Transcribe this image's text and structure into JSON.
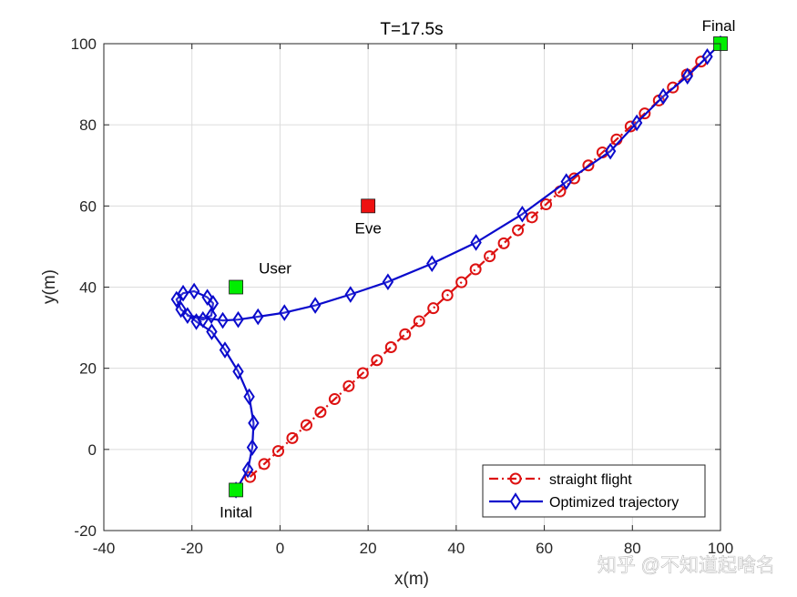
{
  "chart_data": {
    "type": "line",
    "title": "T=17.5s",
    "xlabel": "x(m)",
    "ylabel": "y(m)",
    "xlim": [
      -40,
      100
    ],
    "ylim": [
      -20,
      100
    ],
    "xticks": [
      -40,
      -20,
      0,
      20,
      40,
      60,
      80,
      100
    ],
    "yticks": [
      -20,
      0,
      20,
      40,
      60,
      80,
      100
    ],
    "grid": true,
    "legend": {
      "position": "bottom-right",
      "entries": [
        "straight flight",
        "Optimized trajectory"
      ]
    },
    "series": [
      {
        "name": "straight flight",
        "color": "#dd1111",
        "line": "dash-dot",
        "marker": "circle",
        "x": [
          -6.8,
          -3.6,
          -0.4,
          2.8,
          6.0,
          9.2,
          12.4,
          15.6,
          18.8,
          22.0,
          25.2,
          28.4,
          31.6,
          34.8,
          38.0,
          41.2,
          44.4,
          47.6,
          50.8,
          54.0,
          57.2,
          60.4,
          63.6,
          66.8,
          70.0,
          73.2,
          76.4,
          79.6,
          82.8,
          86.0,
          89.2,
          92.4,
          95.6
        ],
        "y": [
          -6.8,
          -3.6,
          -0.4,
          2.8,
          6.0,
          9.2,
          12.4,
          15.6,
          18.8,
          22.0,
          25.2,
          28.4,
          31.6,
          34.8,
          38.0,
          41.2,
          44.4,
          47.6,
          50.8,
          54.0,
          57.2,
          60.4,
          63.6,
          66.8,
          70.0,
          73.2,
          76.4,
          79.6,
          82.8,
          86.0,
          89.2,
          92.4,
          95.6
        ]
      },
      {
        "name": "Optimized trajectory",
        "color": "#0a0acc",
        "line": "solid",
        "marker": "diamond",
        "x": [
          -10,
          -7.3,
          -6.3,
          -6.0,
          -7.0,
          -9.5,
          -12.5,
          -15.5,
          -19.0,
          -22.5,
          -23.5,
          -22.0,
          -19.5,
          -16.5,
          -15.2,
          -15.6,
          -17.5,
          -21.0,
          -13.0,
          -9.5,
          -5.0,
          1.0,
          8.0,
          16.0,
          24.5,
          34.5,
          44.5,
          55.0,
          65.0,
          75.0,
          81.0,
          87.0,
          92.5,
          97.0,
          100
        ],
        "y": [
          -10,
          -5.0,
          0.5,
          6.5,
          13.0,
          19.2,
          24.5,
          29.0,
          31.5,
          34.5,
          37.0,
          38.5,
          39.0,
          37.5,
          36.0,
          33.0,
          32.0,
          33.0,
          31.8,
          32.0,
          32.7,
          33.7,
          35.5,
          38.2,
          41.3,
          45.8,
          51.0,
          58.0,
          66.0,
          73.5,
          80.5,
          87.0,
          92.0,
          96.8,
          100
        ]
      }
    ],
    "points": [
      {
        "label": "Inital",
        "x": -10,
        "y": -10,
        "color": "#00ee00",
        "label_pos": "below"
      },
      {
        "label": "User",
        "x": -10,
        "y": 40,
        "color": "#00ee00",
        "label_pos": "upper-right"
      },
      {
        "label": "Eve",
        "x": 20,
        "y": 60,
        "color": "#ee1111",
        "label_pos": "below"
      },
      {
        "label": "Final",
        "x": 100,
        "y": 100,
        "color": "#00ee00",
        "label_pos": "above"
      }
    ]
  },
  "watermark": "知乎 @不知道起啥名"
}
